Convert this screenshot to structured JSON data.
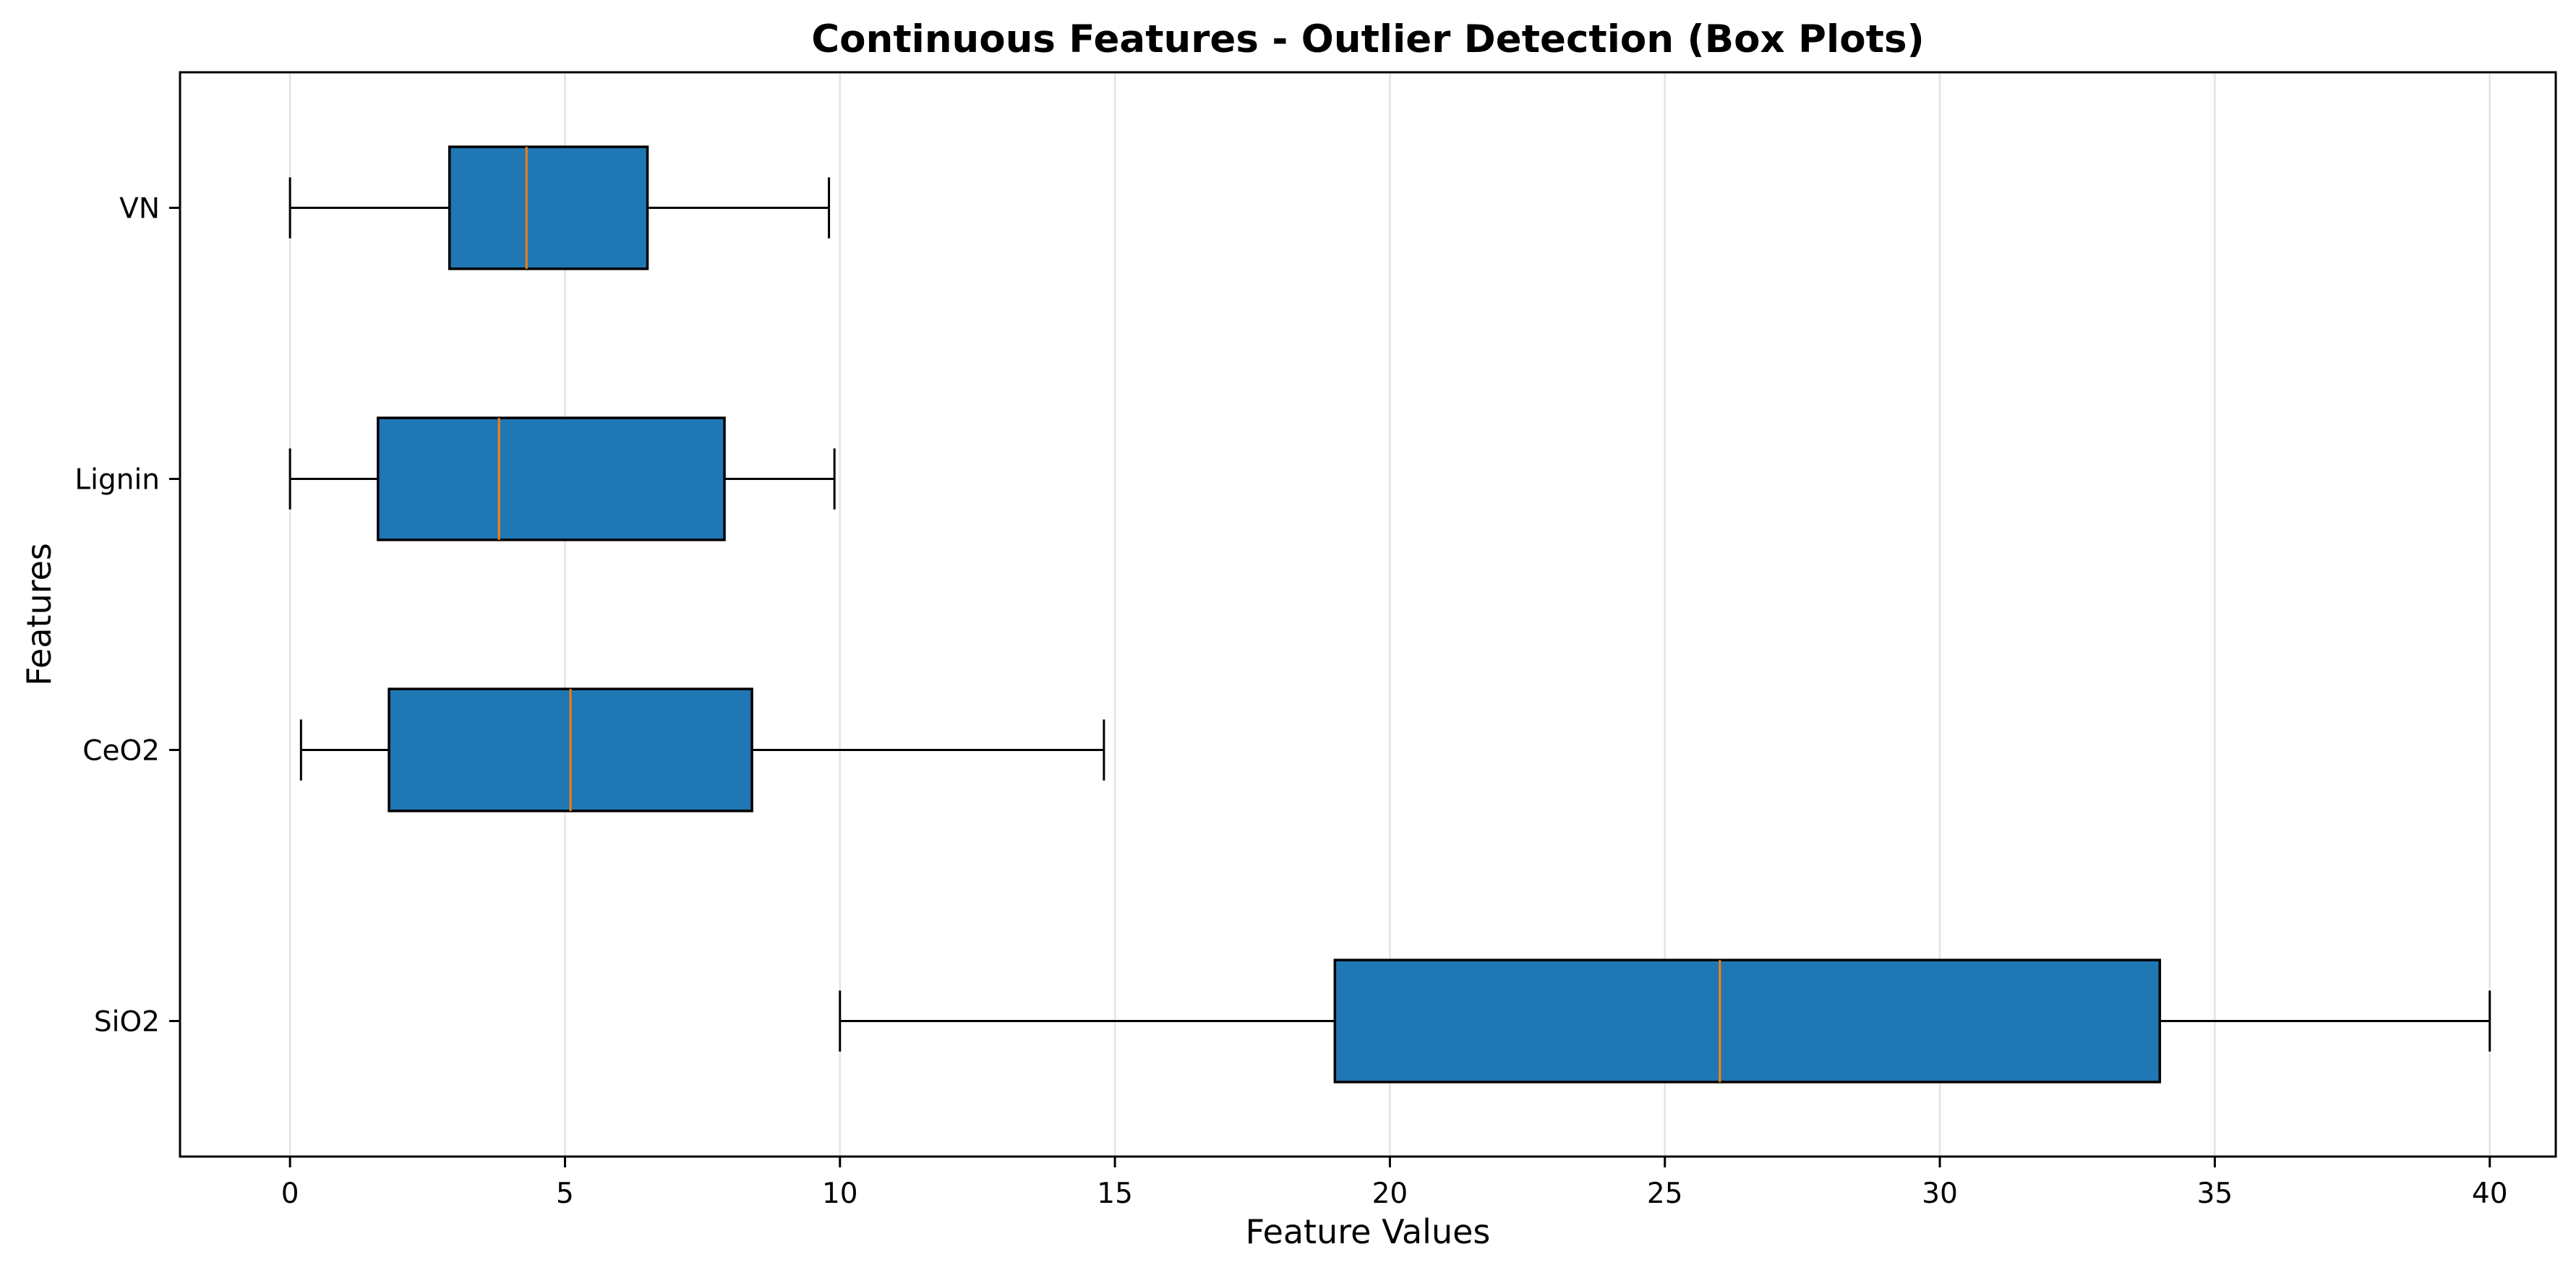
{
  "chart_data": {
    "type": "boxplot",
    "orientation": "horizontal",
    "title": "Continuous Features - Outlier Detection (Box Plots)",
    "xlabel": "Feature Values",
    "ylabel": "Features",
    "xlim": [
      -2,
      41.2
    ],
    "x_ticks": [
      0,
      5,
      10,
      15,
      20,
      25,
      30,
      35,
      40
    ],
    "grid": "vertical",
    "categories": [
      "SiO2",
      "CeO2",
      "Lignin",
      "VN"
    ],
    "boxes": [
      {
        "label": "SiO2",
        "whisker_low": 10,
        "q1": 19,
        "median": 26,
        "q3": 34,
        "whisker_high": 40
      },
      {
        "label": "CeO2",
        "whisker_low": 0.2,
        "q1": 1.8,
        "median": 5.1,
        "q3": 8.4,
        "whisker_high": 14.8
      },
      {
        "label": "Lignin",
        "whisker_low": 0,
        "q1": 1.6,
        "median": 3.8,
        "q3": 7.9,
        "whisker_high": 9.9
      },
      {
        "label": "VN",
        "whisker_low": 0,
        "q1": 2.9,
        "median": 4.3,
        "q3": 6.5,
        "whisker_high": 9.8
      }
    ],
    "colors": {
      "box_fill": "#1f77b4",
      "box_edge": "#000000",
      "median": "#ff7f0e",
      "whisker": "#000000",
      "grid": "#e3e3e3",
      "axes": "#000000"
    }
  }
}
